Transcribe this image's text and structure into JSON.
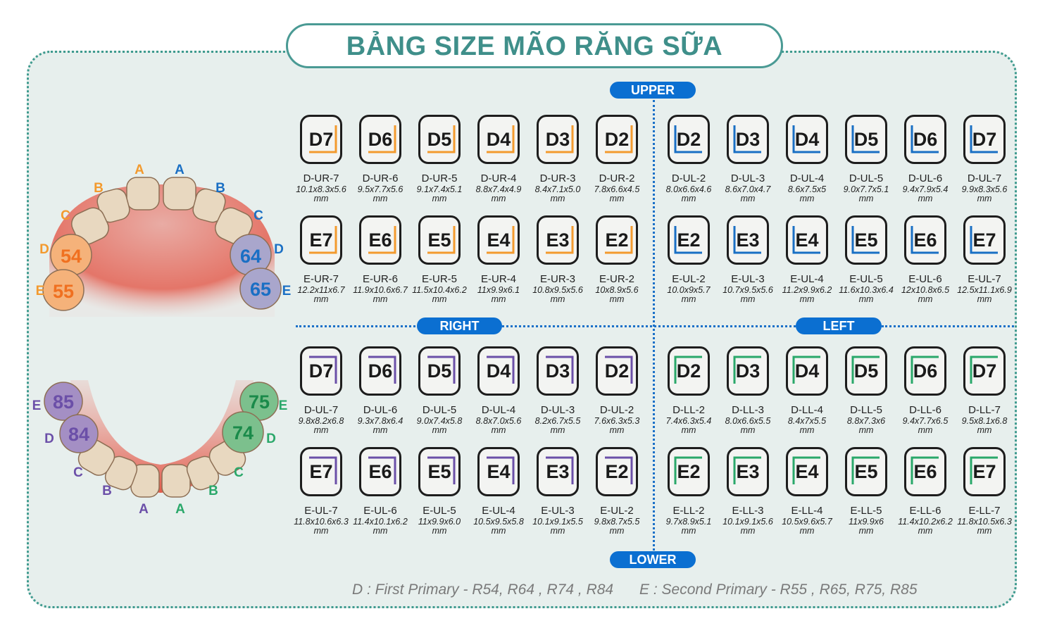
{
  "title": "BẢNG SIZE MÃO RĂNG SỮA",
  "labels": {
    "upper": "UPPER",
    "lower": "LOWER",
    "right": "RIGHT",
    "left": "LEFT"
  },
  "colors": {
    "upper_right": "#f39a2e",
    "upper_left": "#1a6fc4",
    "lower_right": "#6b4fa8",
    "lower_left": "#2aa86a",
    "accent": "#0b6fd1",
    "title": "#3f8f8a"
  },
  "upper_arch": {
    "right_letters": [
      "A",
      "B",
      "C",
      "D",
      "E"
    ],
    "left_letters": [
      "A",
      "B",
      "C",
      "D",
      "E"
    ],
    "teeth_numbers": {
      "d_right": "54",
      "e_right": "55",
      "d_left": "64",
      "e_left": "65"
    }
  },
  "lower_arch": {
    "right_letters": [
      "A",
      "B",
      "C",
      "D",
      "E"
    ],
    "left_letters": [
      "A",
      "B",
      "C",
      "D",
      "E"
    ],
    "teeth_numbers": {
      "d_right": "84",
      "e_right": "85",
      "d_left": "74",
      "e_left": "75"
    }
  },
  "rows": [
    {
      "quadrants": [
        {
          "bracket": "upper_right",
          "cells": [
            {
              "tooth": "D7",
              "code": "D-UR-7",
              "size": "10.1x8.3x5.6",
              "unit": "mm"
            },
            {
              "tooth": "D6",
              "code": "D-UR-6",
              "size": "9.5x7.7x5.6",
              "unit": "mm"
            },
            {
              "tooth": "D5",
              "code": "D-UR-5",
              "size": "9.1x7.4x5.1",
              "unit": "mm"
            },
            {
              "tooth": "D4",
              "code": "D-UR-4",
              "size": "8.8x7.4x4.9",
              "unit": "mm"
            },
            {
              "tooth": "D3",
              "code": "D-UR-3",
              "size": "8.4x7.1x5.0",
              "unit": "mm"
            },
            {
              "tooth": "D2",
              "code": "D-UR-2",
              "size": "7.8x6.6x4.5",
              "unit": "mm"
            }
          ]
        },
        {
          "bracket": "upper_left",
          "cells": [
            {
              "tooth": "D2",
              "code": "D-UL-2",
              "size": "8.0x6.6x4.6",
              "unit": "mm"
            },
            {
              "tooth": "D3",
              "code": "D-UL-3",
              "size": "8.6x7.0x4.7",
              "unit": "mm"
            },
            {
              "tooth": "D4",
              "code": "D-UL-4",
              "size": "8.6x7.5x5",
              "unit": "mm"
            },
            {
              "tooth": "D5",
              "code": "D-UL-5",
              "size": "9.0x7.7x5.1",
              "unit": "mm"
            },
            {
              "tooth": "D6",
              "code": "D-UL-6",
              "size": "9.4x7.9x5.4",
              "unit": "mm"
            },
            {
              "tooth": "D7",
              "code": "D-UL-7",
              "size": "9.9x8.3x5.6",
              "unit": "mm"
            }
          ]
        }
      ]
    },
    {
      "quadrants": [
        {
          "bracket": "upper_right",
          "cells": [
            {
              "tooth": "E7",
              "code": "E-UR-7",
              "size": "12.2x11x6.7",
              "unit": "mm"
            },
            {
              "tooth": "E6",
              "code": "E-UR-6",
              "size": "11.9x10.6x6.7",
              "unit": "mm"
            },
            {
              "tooth": "E5",
              "code": "E-UR-5",
              "size": "11.5x10.4x6.2",
              "unit": "mm"
            },
            {
              "tooth": "E4",
              "code": "E-UR-4",
              "size": "11x9.9x6.1",
              "unit": "mm"
            },
            {
              "tooth": "E3",
              "code": "E-UR-3",
              "size": "10.8x9.5x5.6",
              "unit": "mm"
            },
            {
              "tooth": "E2",
              "code": "E-UR-2",
              "size": "10x8.9x5.6",
              "unit": "mm"
            }
          ]
        },
        {
          "bracket": "upper_left",
          "cells": [
            {
              "tooth": "E2",
              "code": "E-UL-2",
              "size": "10.0x9x5.7",
              "unit": "mm"
            },
            {
              "tooth": "E3",
              "code": "E-UL-3",
              "size": "10.7x9.5x5.6",
              "unit": "mm"
            },
            {
              "tooth": "E4",
              "code": "E-UL-4",
              "size": "11.2x9.9x6.2",
              "unit": "mm"
            },
            {
              "tooth": "E5",
              "code": "E-UL-5",
              "size": "11.6x10.3x6.4",
              "unit": "mm"
            },
            {
              "tooth": "E6",
              "code": "E-UL-6",
              "size": "12x10.8x6.5",
              "unit": "mm"
            },
            {
              "tooth": "E7",
              "code": "E-UL-7",
              "size": "12.5x11.1x6.9",
              "unit": "mm"
            }
          ]
        }
      ]
    },
    {
      "quadrants": [
        {
          "bracket": "lower_right",
          "cells": [
            {
              "tooth": "D7",
              "code": "D-UL-7",
              "size": "9.8x8.2x6.8",
              "unit": "mm"
            },
            {
              "tooth": "D6",
              "code": "D-UL-6",
              "size": "9.3x7.8x6.4",
              "unit": "mm"
            },
            {
              "tooth": "D5",
              "code": "D-UL-5",
              "size": "9.0x7.4x5.8",
              "unit": "mm"
            },
            {
              "tooth": "D4",
              "code": "D-UL-4",
              "size": "8.8x7.0x5.6",
              "unit": "mm"
            },
            {
              "tooth": "D3",
              "code": "D-UL-3",
              "size": "8.2x6.7x5.5",
              "unit": "mm"
            },
            {
              "tooth": "D2",
              "code": "D-UL-2",
              "size": "7.6x6.3x5.3",
              "unit": "mm"
            }
          ]
        },
        {
          "bracket": "lower_left",
          "cells": [
            {
              "tooth": "D2",
              "code": "D-LL-2",
              "size": "7.4x6.3x5.4",
              "unit": "mm"
            },
            {
              "tooth": "D3",
              "code": "D-LL-3",
              "size": "8.0x6.6x5.5",
              "unit": "mm"
            },
            {
              "tooth": "D4",
              "code": "D-LL-4",
              "size": "8.4x7x5.5",
              "unit": "mm"
            },
            {
              "tooth": "D5",
              "code": "D-LL-5",
              "size": "8.8x7.3x6",
              "unit": "mm"
            },
            {
              "tooth": "D6",
              "code": "D-LL-6",
              "size": "9.4x7.7x6.5",
              "unit": "mm"
            },
            {
              "tooth": "D7",
              "code": "D-LL-7",
              "size": "9.5x8.1x6.8",
              "unit": "mm"
            }
          ]
        }
      ]
    },
    {
      "quadrants": [
        {
          "bracket": "lower_right",
          "cells": [
            {
              "tooth": "E7",
              "code": "E-UL-7",
              "size": "11.8x10.6x6.3",
              "unit": "mm"
            },
            {
              "tooth": "E6",
              "code": "E-UL-6",
              "size": "11.4x10.1x6.2",
              "unit": "mm"
            },
            {
              "tooth": "E5",
              "code": "E-UL-5",
              "size": "11x9.9x6.0",
              "unit": "mm"
            },
            {
              "tooth": "E4",
              "code": "E-UL-4",
              "size": "10.5x9.5x5.8",
              "unit": "mm"
            },
            {
              "tooth": "E3",
              "code": "E-UL-3",
              "size": "10.1x9.1x5.5",
              "unit": "mm"
            },
            {
              "tooth": "E2",
              "code": "E-UL-2",
              "size": "9.8x8.7x5.5",
              "unit": "mm"
            }
          ]
        },
        {
          "bracket": "lower_left",
          "cells": [
            {
              "tooth": "E2",
              "code": "E-LL-2",
              "size": "9.7x8.9x5.1",
              "unit": "mm"
            },
            {
              "tooth": "E3",
              "code": "E-LL-3",
              "size": "10.1x9.1x5.6",
              "unit": "mm"
            },
            {
              "tooth": "E4",
              "code": "E-LL-4",
              "size": "10.5x9.6x5.7",
              "unit": "mm"
            },
            {
              "tooth": "E5",
              "code": "E-LL-5",
              "size": "11x9.9x6",
              "unit": "mm"
            },
            {
              "tooth": "E6",
              "code": "E-LL-6",
              "size": "11.4x10.2x6.2",
              "unit": "mm"
            },
            {
              "tooth": "E7",
              "code": "E-LL-7",
              "size": "11.8x10.5x6.3",
              "unit": "mm"
            }
          ]
        }
      ]
    }
  ],
  "legend": {
    "d": "D : First Primary - R54, R64 , R74 , R84",
    "e": "E : Second Primary - R55 , R65, R75, R85"
  }
}
